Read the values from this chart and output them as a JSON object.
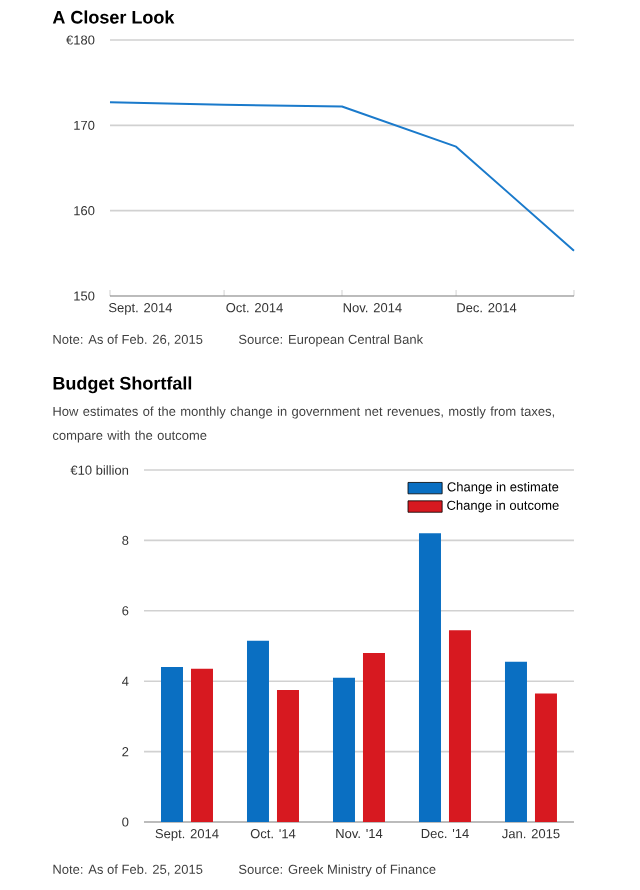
{
  "chart_data": [
    {
      "type": "line",
      "title": "A Closer Look",
      "x": [
        "2014-09-01",
        "2014-10-01",
        "2014-11-01",
        "2014-12-01",
        "2015-01-01"
      ],
      "values": [
        172.7,
        172.4,
        172.2,
        167.5,
        155.3
      ],
      "color": "#1a7acb",
      "xlim": [
        "2014-09-01",
        "2015-01-01"
      ],
      "xticks": [
        {
          "value": "2014-09-01",
          "label": null
        },
        {
          "value": "2014-10-01",
          "label": null
        },
        {
          "value": "2014-11-01",
          "label": null
        },
        {
          "value": "2014-12-01",
          "label": null
        },
        {
          "value": "2015-01-01",
          "label": null
        },
        {
          "value": "2014-09-09",
          "label": "Sept. 2014"
        },
        {
          "value": "2014-10-09",
          "label": "Oct. 2014"
        },
        {
          "value": "2014-11-09",
          "label": "Nov. 2014"
        },
        {
          "value": "2014-12-09",
          "label": "Dec. 2014"
        }
      ],
      "ylim": [
        150,
        180
      ],
      "yticks": [
        150,
        160,
        170,
        {
          "value": 180,
          "label": "€180"
        }
      ],
      "grid": "y",
      "annotations": [
        "Note: As of Feb. 26, 2015",
        "Source: European Central Bank"
      ]
    },
    {
      "type": "bar",
      "title": "Budget Shortfall",
      "subtitle": "How estimates of the monthly change in government net revenues, mostly from taxes, compare with the outcome",
      "categories": [
        "Sept. 2014",
        "Oct. '14",
        "Nov. '14",
        "Dec. '14",
        "Jan. 2015"
      ],
      "series": [
        {
          "name": "Change in estimate",
          "color": "#0a6fc2",
          "values": [
            4.4,
            5.15,
            4.1,
            8.2,
            4.55
          ]
        },
        {
          "name": "Change in outcome",
          "color": "#d71920",
          "values": [
            4.35,
            3.75,
            4.8,
            5.45,
            3.65
          ]
        }
      ],
      "ylim": [
        0,
        10
      ],
      "yticks": [
        0,
        2,
        4,
        6,
        8,
        {
          "value": 10,
          "label": "€10 billion"
        }
      ],
      "grid": "y",
      "legend": "top right",
      "annotations": [
        "Note: As of Feb. 25, 2015",
        "Source: Greek Ministry of Finance"
      ]
    }
  ]
}
